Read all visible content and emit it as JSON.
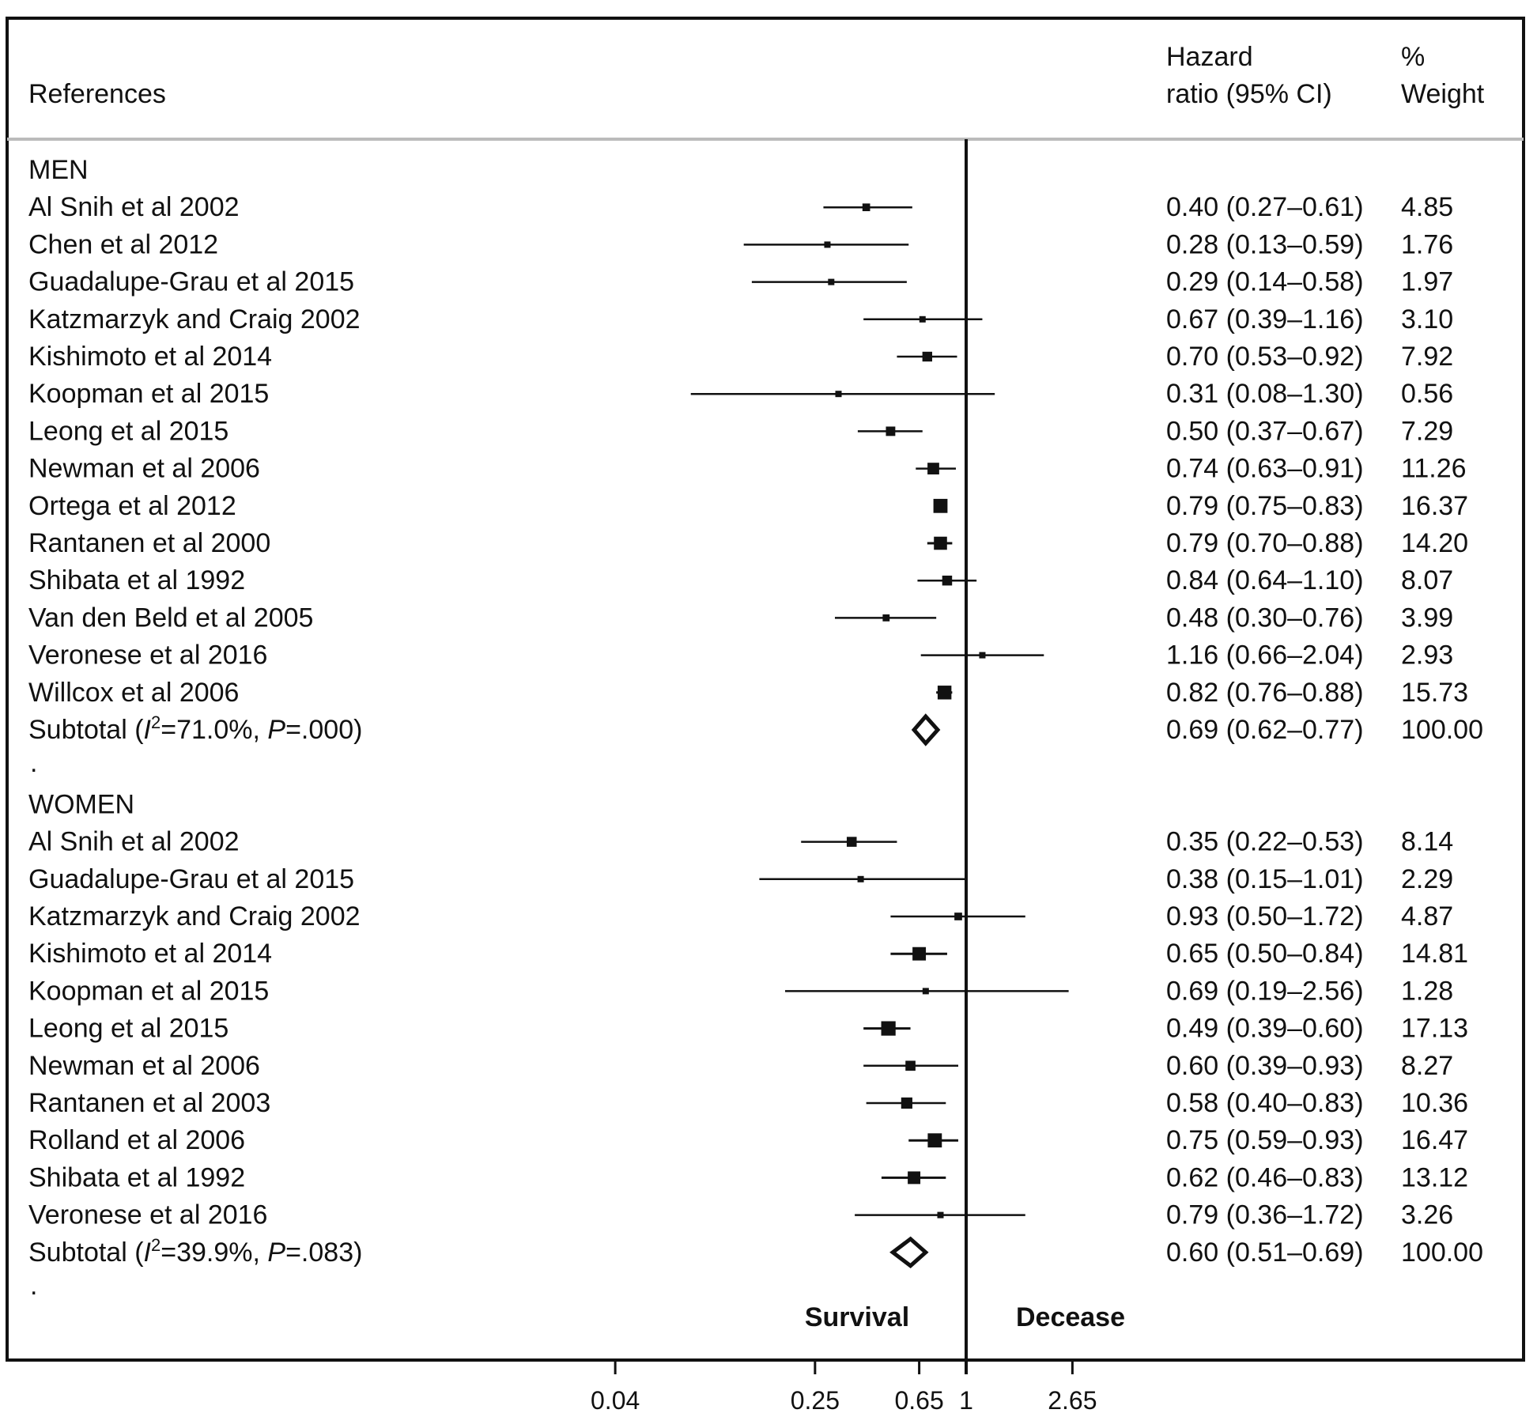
{
  "chart_data": {
    "type": "forest",
    "x_scale": "log",
    "xlim": [
      0.025,
      5.0
    ],
    "null_value": 1,
    "x_ticks": [
      {
        "value": 0.04,
        "label": "0.04"
      },
      {
        "value": 0.25,
        "label": "0.25"
      },
      {
        "value": 0.65,
        "label": "0.65"
      },
      {
        "value": 1,
        "label": "1"
      },
      {
        "value": 2.65,
        "label": "2.65"
      }
    ],
    "headers": {
      "references": "References",
      "hr_line1": "Hazard",
      "hr_line2": "ratio (95% CI)",
      "weight_line1": "%",
      "weight_line2": "Weight"
    },
    "direction_labels": {
      "left": "Survival",
      "right": "Decease"
    },
    "groups": [
      {
        "name": "MEN",
        "studies": [
          {
            "label": "Al Snih et al 2002",
            "hr": 0.4,
            "lo": 0.27,
            "hi": 0.61,
            "ci_text": "0.40 (0.27–0.61)",
            "weight": 4.85,
            "weight_text": "4.85"
          },
          {
            "label": "Chen et al 2012",
            "hr": 0.28,
            "lo": 0.13,
            "hi": 0.59,
            "ci_text": "0.28 (0.13–0.59)",
            "weight": 1.76,
            "weight_text": "1.76"
          },
          {
            "label": "Guadalupe-Grau et al 2015",
            "hr": 0.29,
            "lo": 0.14,
            "hi": 0.58,
            "ci_text": "0.29 (0.14–0.58)",
            "weight": 1.97,
            "weight_text": "1.97"
          },
          {
            "label": "Katzmarzyk and Craig 2002",
            "hr": 0.67,
            "lo": 0.39,
            "hi": 1.16,
            "ci_text": "0.67 (0.39–1.16)",
            "weight": 3.1,
            "weight_text": "3.10"
          },
          {
            "label": "Kishimoto et al 2014",
            "hr": 0.7,
            "lo": 0.53,
            "hi": 0.92,
            "ci_text": "0.70 (0.53–0.92)",
            "weight": 7.92,
            "weight_text": "7.92"
          },
          {
            "label": "Koopman et al 2015",
            "hr": 0.31,
            "lo": 0.08,
            "hi": 1.3,
            "ci_text": "0.31 (0.08–1.30)",
            "weight": 0.56,
            "weight_text": "0.56"
          },
          {
            "label": "Leong et al 2015",
            "hr": 0.5,
            "lo": 0.37,
            "hi": 0.67,
            "ci_text": "0.50 (0.37–0.67)",
            "weight": 7.29,
            "weight_text": "7.29"
          },
          {
            "label": "Newman et al 2006",
            "hr": 0.74,
            "lo": 0.63,
            "hi": 0.91,
            "ci_text": "0.74 (0.63–0.91)",
            "weight": 11.26,
            "weight_text": "11.26"
          },
          {
            "label": "Ortega et al 2012",
            "hr": 0.79,
            "lo": 0.75,
            "hi": 0.83,
            "ci_text": "0.79 (0.75–0.83)",
            "weight": 16.37,
            "weight_text": "16.37"
          },
          {
            "label": "Rantanen et al 2000",
            "hr": 0.79,
            "lo": 0.7,
            "hi": 0.88,
            "ci_text": "0.79 (0.70–0.88)",
            "weight": 14.2,
            "weight_text": "14.20"
          },
          {
            "label": "Shibata et al 1992",
            "hr": 0.84,
            "lo": 0.64,
            "hi": 1.1,
            "ci_text": "0.84 (0.64–1.10)",
            "weight": 8.07,
            "weight_text": "8.07"
          },
          {
            "label": "Van den Beld et al 2005",
            "hr": 0.48,
            "lo": 0.3,
            "hi": 0.76,
            "ci_text": "0.48 (0.30–0.76)",
            "weight": 3.99,
            "weight_text": "3.99"
          },
          {
            "label": "Veronese et al 2016",
            "hr": 1.16,
            "lo": 0.66,
            "hi": 2.04,
            "ci_text": "1.16 (0.66–2.04)",
            "weight": 2.93,
            "weight_text": "2.93"
          },
          {
            "label": "Willcox et al 2006",
            "hr": 0.82,
            "lo": 0.76,
            "hi": 0.88,
            "ci_text": "0.82 (0.76–0.88)",
            "weight": 15.73,
            "weight_text": "15.73"
          }
        ],
        "subtotal": {
          "label_prefix": "Subtotal (",
          "i_symbol": "I",
          "i_sup": "2",
          "i_value": "=71.0%, ",
          "p_symbol": "P",
          "p_value": "=.000)",
          "hr": 0.69,
          "lo": 0.62,
          "hi": 0.77,
          "ci_text": "0.69 (0.62–0.77)",
          "weight_text": "100.00"
        }
      },
      {
        "name": "WOMEN",
        "studies": [
          {
            "label": "Al Snih et al 2002",
            "hr": 0.35,
            "lo": 0.22,
            "hi": 0.53,
            "ci_text": "0.35 (0.22–0.53)",
            "weight": 8.14,
            "weight_text": "8.14"
          },
          {
            "label": "Guadalupe-Grau et al 2015",
            "hr": 0.38,
            "lo": 0.15,
            "hi": 1.01,
            "ci_text": "0.38 (0.15–1.01)",
            "weight": 2.29,
            "weight_text": "2.29"
          },
          {
            "label": "Katzmarzyk and Craig 2002",
            "hr": 0.93,
            "lo": 0.5,
            "hi": 1.72,
            "ci_text": "0.93 (0.50–1.72)",
            "weight": 4.87,
            "weight_text": "4.87"
          },
          {
            "label": "Kishimoto et al 2014",
            "hr": 0.65,
            "lo": 0.5,
            "hi": 0.84,
            "ci_text": "0.65 (0.50–0.84)",
            "weight": 14.81,
            "weight_text": "14.81"
          },
          {
            "label": "Koopman et al 2015",
            "hr": 0.69,
            "lo": 0.19,
            "hi": 2.56,
            "ci_text": "0.69 (0.19–2.56)",
            "weight": 1.28,
            "weight_text": "1.28"
          },
          {
            "label": "Leong et al 2015",
            "hr": 0.49,
            "lo": 0.39,
            "hi": 0.6,
            "ci_text": "0.49 (0.39–0.60)",
            "weight": 17.13,
            "weight_text": "17.13"
          },
          {
            "label": "Newman et al 2006",
            "hr": 0.6,
            "lo": 0.39,
            "hi": 0.93,
            "ci_text": "0.60 (0.39–0.93)",
            "weight": 8.27,
            "weight_text": "8.27"
          },
          {
            "label": "Rantanen et al 2003",
            "hr": 0.58,
            "lo": 0.4,
            "hi": 0.83,
            "ci_text": "0.58 (0.40–0.83)",
            "weight": 10.36,
            "weight_text": "10.36"
          },
          {
            "label": "Rolland et al 2006",
            "hr": 0.75,
            "lo": 0.59,
            "hi": 0.93,
            "ci_text": "0.75 (0.59–0.93)",
            "weight": 16.47,
            "weight_text": "16.47"
          },
          {
            "label": "Shibata et al 1992",
            "hr": 0.62,
            "lo": 0.46,
            "hi": 0.83,
            "ci_text": "0.62 (0.46–0.83)",
            "weight": 13.12,
            "weight_text": "13.12"
          },
          {
            "label": "Veronese et al 2016",
            "hr": 0.79,
            "lo": 0.36,
            "hi": 1.72,
            "ci_text": "0.79 (0.36–1.72)",
            "weight": 3.26,
            "weight_text": "3.26"
          }
        ],
        "subtotal": {
          "label_prefix": "Subtotal (",
          "i_symbol": "I",
          "i_sup": "2",
          "i_value": "=39.9%, ",
          "p_symbol": "P",
          "p_value": "=.083)",
          "hr": 0.6,
          "lo": 0.51,
          "hi": 0.69,
          "ci_text": "0.60 (0.51–0.69)",
          "weight_text": "100.00"
        }
      }
    ],
    "separator_mark": "."
  }
}
